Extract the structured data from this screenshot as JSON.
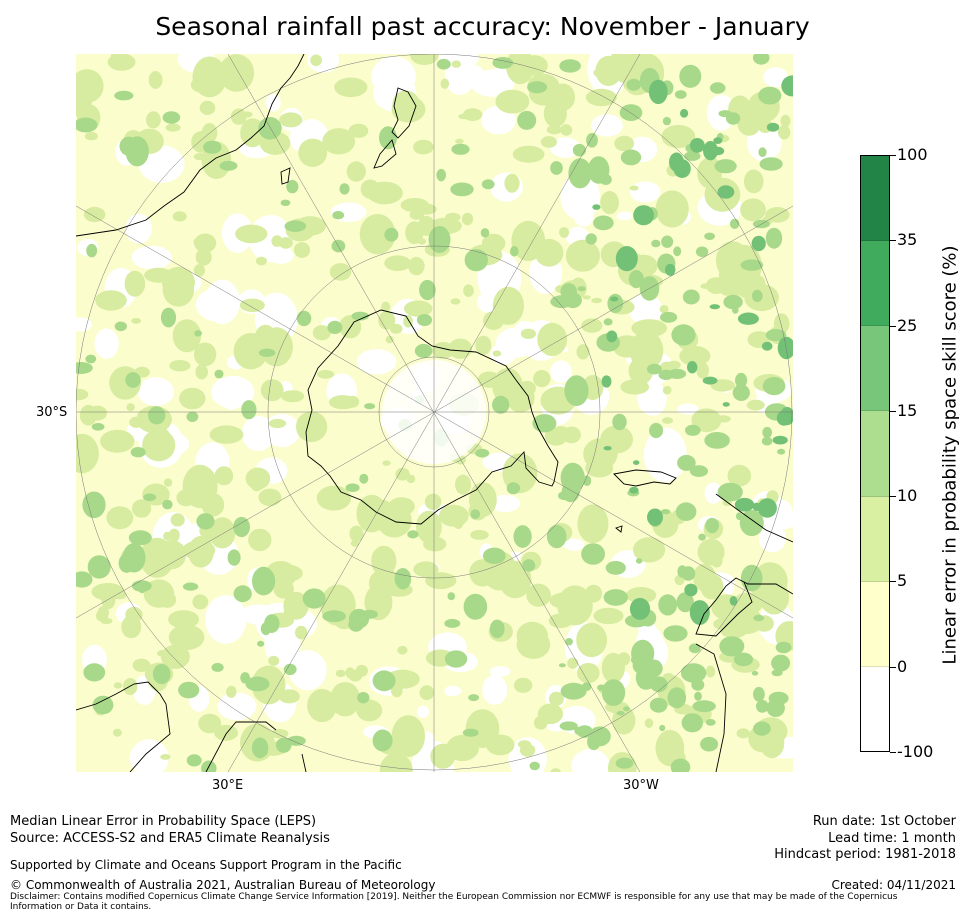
{
  "title": "Seasonal rainfall past accuracy: November - January",
  "map": {
    "labels": {
      "lat_left": "30°S",
      "lon_bottom_left": "30°E",
      "lon_bottom_right": "30°W"
    },
    "colors": {
      "ocean_base": "#fbfdcc",
      "light_green": "#d7eca0",
      "mid_green": "#a8d98a",
      "dark_green": "#73c177",
      "coast": "#000000"
    }
  },
  "colorbar": {
    "title": "Linear error in probability space skill score (%)",
    "levels": [
      "100",
      "35",
      "25",
      "15",
      "10",
      "5",
      "0",
      "-100"
    ],
    "colors": [
      "#228447",
      "#40ab5d",
      "#78c679",
      "#addd8e",
      "#d9f0a3",
      "#ffffcc",
      "#ffffff"
    ]
  },
  "footer": {
    "line1": "Median Linear Error in Probability Space (LEPS)",
    "line2": "Source: ACCESS-S2 and ERA5 Climate Reanalysis",
    "support": "Supported by Climate and Oceans Support Program in the Pacific",
    "copyright": "© Commonwealth of Australia 2021, Australian Bureau of Meteorology",
    "disclaimer": "Disclaimer: Contains modified Copernicus Climate Change Service Information [2019]. Neither the European Commission nor ECMWF is responsible for any use that may be made of the Copernicus Information or Data it contains.",
    "run_date": "Run date: 1st October",
    "lead_time": "Lead time: 1 month",
    "hindcast": "Hindcast period: 1981-2018",
    "created": "Created: 04/11/2021"
  }
}
